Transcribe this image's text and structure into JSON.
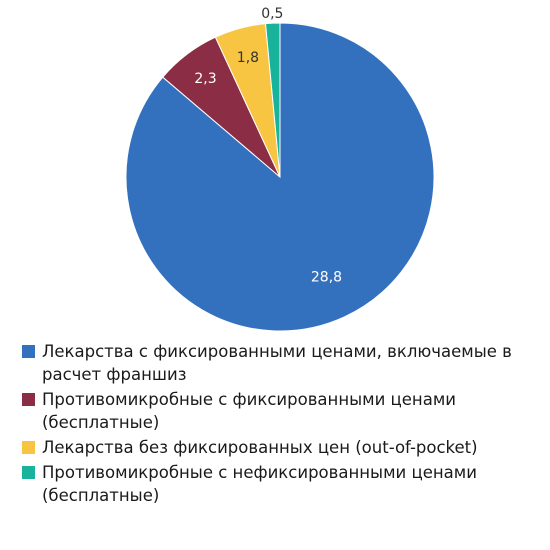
{
  "chart_data": {
    "type": "pie",
    "title": "",
    "slices": [
      {
        "label": "Лекарства с фиксированными ценами, включаемые в расчет франшиз",
        "value": 28.8,
        "value_label": "28,8",
        "color": "#3371bf",
        "label_color": "#ffffff"
      },
      {
        "label": "Противомикробные с фиксированными ценами (бесплатные)",
        "value": 2.3,
        "value_label": "2,3",
        "color": "#8b2e45",
        "label_color": "#ffffff"
      },
      {
        "label": "Лекарства без фиксированных цен (out-of-pocket)",
        "value": 1.8,
        "value_label": "1,8",
        "color": "#f7c542",
        "label_color": "#333333"
      },
      {
        "label": "Противомикробные с нефиксированными ценами (бесплатные)",
        "value": 0.5,
        "value_label": "0,5",
        "color": "#17b39a",
        "label_color": "#333333"
      }
    ],
    "legend_placement": "bottom"
  }
}
